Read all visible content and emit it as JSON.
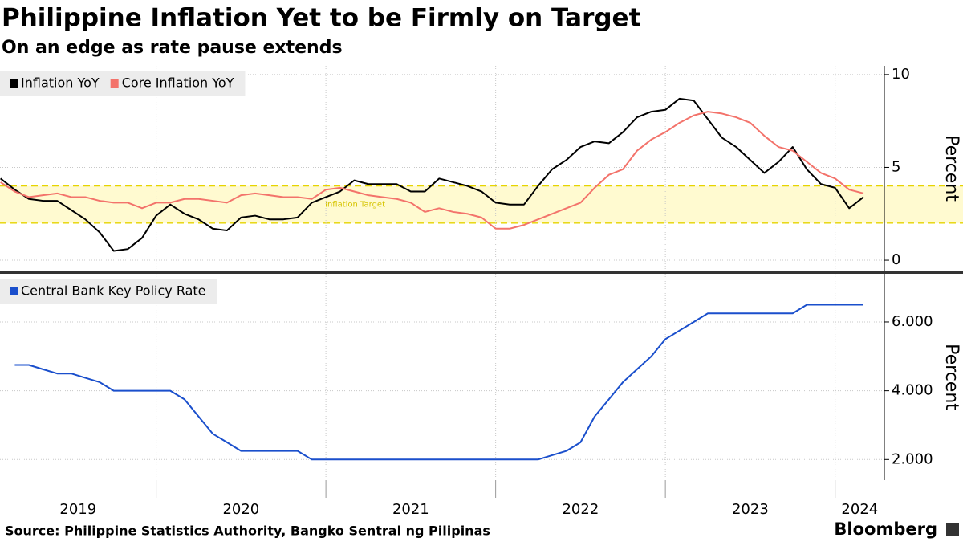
{
  "chart_data": [
    {
      "type": "line",
      "title": "Philippine Inflation Yet to be Firmly on Target",
      "subtitle": "On an edge as rate pause extends",
      "y_label": "Percent",
      "xlim": [
        2019.08,
        2024.29
      ],
      "xticks": [
        2020,
        2021,
        2022,
        2023,
        2024
      ],
      "ylim": [
        -0.56,
        10.47
      ],
      "yticks": [
        0,
        5,
        10
      ],
      "grid": true,
      "annotations": [
        {
          "text": "Inflation Target",
          "range": [
            2,
            4
          ]
        }
      ],
      "x": [
        2019.083,
        2019.167,
        2019.25,
        2019.333,
        2019.417,
        2019.5,
        2019.583,
        2019.667,
        2019.75,
        2019.833,
        2019.917,
        2020,
        2020.083,
        2020.167,
        2020.25,
        2020.333,
        2020.417,
        2020.5,
        2020.583,
        2020.667,
        2020.75,
        2020.833,
        2020.917,
        2021,
        2021.083,
        2021.167,
        2021.25,
        2021.333,
        2021.417,
        2021.5,
        2021.583,
        2021.667,
        2021.75,
        2021.833,
        2021.917,
        2022,
        2022.083,
        2022.167,
        2022.25,
        2022.333,
        2022.417,
        2022.5,
        2022.583,
        2022.667,
        2022.75,
        2022.833,
        2022.917,
        2023,
        2023.083,
        2023.167,
        2023.25,
        2023.333,
        2023.417,
        2023.5,
        2023.583,
        2023.667,
        2023.75,
        2023.833,
        2023.917,
        2024,
        2024.083,
        2024.167
      ],
      "series": [
        {
          "name": "Inflation YoY",
          "color": "#000000",
          "values": [
            4.4,
            3.8,
            3.3,
            3.2,
            3.2,
            2.7,
            2.2,
            1.5,
            0.5,
            0.6,
            1.2,
            2.4,
            3.0,
            2.5,
            2.2,
            1.7,
            1.6,
            2.3,
            2.4,
            2.2,
            2.2,
            2.3,
            3.1,
            3.4,
            3.7,
            4.3,
            4.1,
            4.1,
            4.1,
            3.7,
            3.7,
            4.4,
            4.2,
            4.0,
            3.7,
            3.1,
            3.0,
            3.0,
            4.0,
            4.9,
            5.4,
            6.1,
            6.4,
            6.3,
            6.9,
            7.7,
            8.0,
            8.1,
            8.7,
            8.6,
            7.6,
            6.6,
            6.1,
            5.4,
            4.7,
            5.3,
            6.1,
            4.9,
            4.1,
            3.9,
            2.8,
            3.4
          ]
        },
        {
          "name": "Core Inflation YoY",
          "color": "#f3736b",
          "values": [
            4.2,
            3.7,
            3.4,
            3.5,
            3.6,
            3.4,
            3.4,
            3.2,
            3.1,
            3.1,
            2.8,
            3.1,
            3.1,
            3.3,
            3.3,
            3.2,
            3.1,
            3.5,
            3.6,
            3.5,
            3.4,
            3.4,
            3.3,
            3.8,
            3.9,
            3.7,
            3.5,
            3.4,
            3.3,
            3.1,
            2.6,
            2.8,
            2.6,
            2.5,
            2.3,
            1.7,
            1.7,
            1.9,
            2.2,
            2.5,
            2.8,
            3.1,
            3.9,
            4.6,
            4.9,
            5.9,
            6.5,
            6.9,
            7.4,
            7.8,
            8.0,
            7.9,
            7.7,
            7.4,
            6.7,
            6.1,
            5.9,
            5.3,
            4.7,
            4.4,
            3.8,
            3.6
          ]
        }
      ]
    },
    {
      "type": "line",
      "y_label": "Percent",
      "xlim": [
        2019.08,
        2024.29
      ],
      "xticks": [
        {
          "value": 2019,
          "label": "2019"
        },
        {
          "value": 2020,
          "label": "2020"
        },
        {
          "value": 2021,
          "label": "2021"
        },
        {
          "value": 2022,
          "label": "2022"
        },
        {
          "value": 2023,
          "label": "2023"
        },
        {
          "value": 2024,
          "label": "2024"
        }
      ],
      "ylim": [
        1.4,
        7.4
      ],
      "yticks": [
        {
          "value": 2,
          "label": "2.000"
        },
        {
          "value": 4,
          "label": "4.000"
        },
        {
          "value": 6,
          "label": "6.000"
        }
      ],
      "grid": true,
      "x": [
        2019.167,
        2019.25,
        2019.333,
        2019.417,
        2019.5,
        2019.583,
        2019.667,
        2019.75,
        2019.833,
        2019.917,
        2020,
        2020.083,
        2020.167,
        2020.25,
        2020.333,
        2020.417,
        2020.5,
        2020.583,
        2020.667,
        2020.75,
        2020.833,
        2020.917,
        2021,
        2021.083,
        2021.167,
        2021.25,
        2021.333,
        2021.417,
        2021.5,
        2021.583,
        2021.667,
        2021.75,
        2021.833,
        2021.917,
        2022,
        2022.083,
        2022.167,
        2022.25,
        2022.333,
        2022.417,
        2022.5,
        2022.583,
        2022.667,
        2022.75,
        2022.833,
        2022.917,
        2023,
        2023.083,
        2023.167,
        2023.25,
        2023.333,
        2023.417,
        2023.5,
        2023.583,
        2023.667,
        2023.75,
        2023.833,
        2023.917,
        2024,
        2024.083,
        2024.167
      ],
      "series": [
        {
          "name": "Central Bank Key Policy Rate",
          "color": "#1a4fcc",
          "values": [
            4.75,
            4.75,
            4.625,
            4.5,
            4.5,
            4.375,
            4.25,
            4.0,
            4.0,
            4.0,
            4.0,
            4.0,
            3.75,
            3.25,
            2.75,
            2.5,
            2.25,
            2.25,
            2.25,
            2.25,
            2.25,
            2.0,
            2.0,
            2.0,
            2.0,
            2.0,
            2.0,
            2.0,
            2.0,
            2.0,
            2.0,
            2.0,
            2.0,
            2.0,
            2.0,
            2.0,
            2.0,
            2.0,
            2.125,
            2.25,
            2.5,
            3.25,
            3.75,
            4.25,
            4.625,
            5.0,
            5.5,
            5.75,
            6.0,
            6.25,
            6.25,
            6.25,
            6.25,
            6.25,
            6.25,
            6.25,
            6.5,
            6.5,
            6.5,
            6.5,
            6.5
          ]
        }
      ]
    }
  ],
  "source": "Source: Philippine Statistics Authority, Bangko Sentral ng Pilipinas",
  "brand": "Bloomberg"
}
